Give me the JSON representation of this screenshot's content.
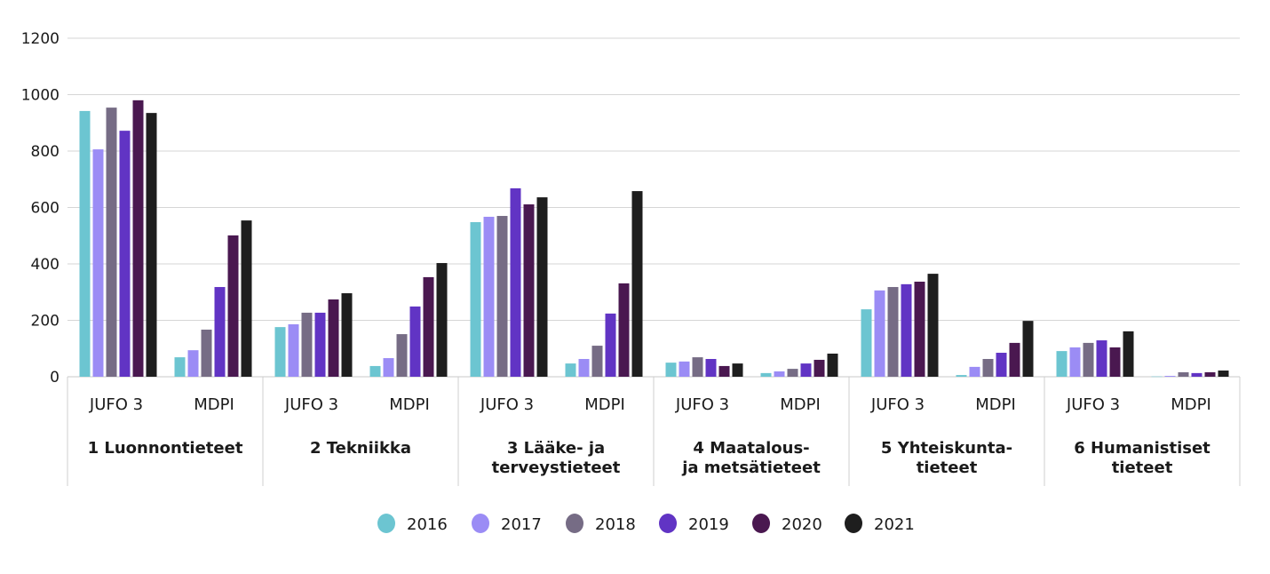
{
  "chart_data": {
    "type": "bar",
    "title": "",
    "xlabel": "",
    "ylabel": "",
    "ylim": [
      0,
      1200
    ],
    "yticks": [
      0,
      200,
      400,
      600,
      800,
      1000,
      1200
    ],
    "grid": true,
    "legend_position": "bottom",
    "groups": [
      {
        "label": "1 Luonnontieteet",
        "label_lines": [
          "1 Luonnontieteet"
        ]
      },
      {
        "label": "2 Tekniikka",
        "label_lines": [
          "2 Tekniikka"
        ]
      },
      {
        "label": "3 Lääke- ja terveystieteet",
        "label_lines": [
          "3 Lääke- ja",
          "terveystieteet"
        ]
      },
      {
        "label": "4 Maatalous- ja metsätieteet",
        "label_lines": [
          "4 Maatalous-",
          "ja metsätieteet"
        ]
      },
      {
        "label": "5 Yhteiskunta- tieteet",
        "label_lines": [
          "5 Yhteiskunta-",
          "tieteet"
        ]
      },
      {
        "label": "6 Humanistiset tieteet",
        "label_lines": [
          "6 Humanistiset",
          "tieteet"
        ]
      }
    ],
    "subcategories": [
      "JUFO 3",
      "MDPI"
    ],
    "series": [
      {
        "name": "2016",
        "color": "#6cc5d1",
        "values": [
          [
            942,
            69
          ],
          [
            176,
            38
          ],
          [
            548,
            47
          ],
          [
            50,
            13
          ],
          [
            239,
            6
          ],
          [
            91,
            1
          ]
        ]
      },
      {
        "name": "2017",
        "color": "#9b8cf5",
        "values": [
          [
            806,
            94
          ],
          [
            186,
            66
          ],
          [
            567,
            63
          ],
          [
            54,
            19
          ],
          [
            306,
            35
          ],
          [
            104,
            3
          ]
        ]
      },
      {
        "name": "2018",
        "color": "#766c85",
        "values": [
          [
            954,
            167
          ],
          [
            227,
            151
          ],
          [
            570,
            110
          ],
          [
            69,
            28
          ],
          [
            318,
            63
          ],
          [
            120,
            16
          ]
        ]
      },
      {
        "name": "2019",
        "color": "#6134c4",
        "values": [
          [
            872,
            318
          ],
          [
            227,
            249
          ],
          [
            668,
            224
          ],
          [
            63,
            47
          ],
          [
            328,
            85
          ],
          [
            129,
            13
          ]
        ]
      },
      {
        "name": "2020",
        "color": "#4a1850",
        "values": [
          [
            980,
            501
          ],
          [
            274,
            353
          ],
          [
            611,
            331
          ],
          [
            38,
            60
          ],
          [
            337,
            120
          ],
          [
            104,
            16
          ]
        ]
      },
      {
        "name": "2021",
        "color": "#1e1e1e",
        "values": [
          [
            935,
            554
          ],
          [
            296,
            403
          ],
          [
            636,
            658
          ],
          [
            47,
            82
          ],
          [
            365,
            198
          ],
          [
            161,
            22
          ]
        ]
      }
    ]
  }
}
